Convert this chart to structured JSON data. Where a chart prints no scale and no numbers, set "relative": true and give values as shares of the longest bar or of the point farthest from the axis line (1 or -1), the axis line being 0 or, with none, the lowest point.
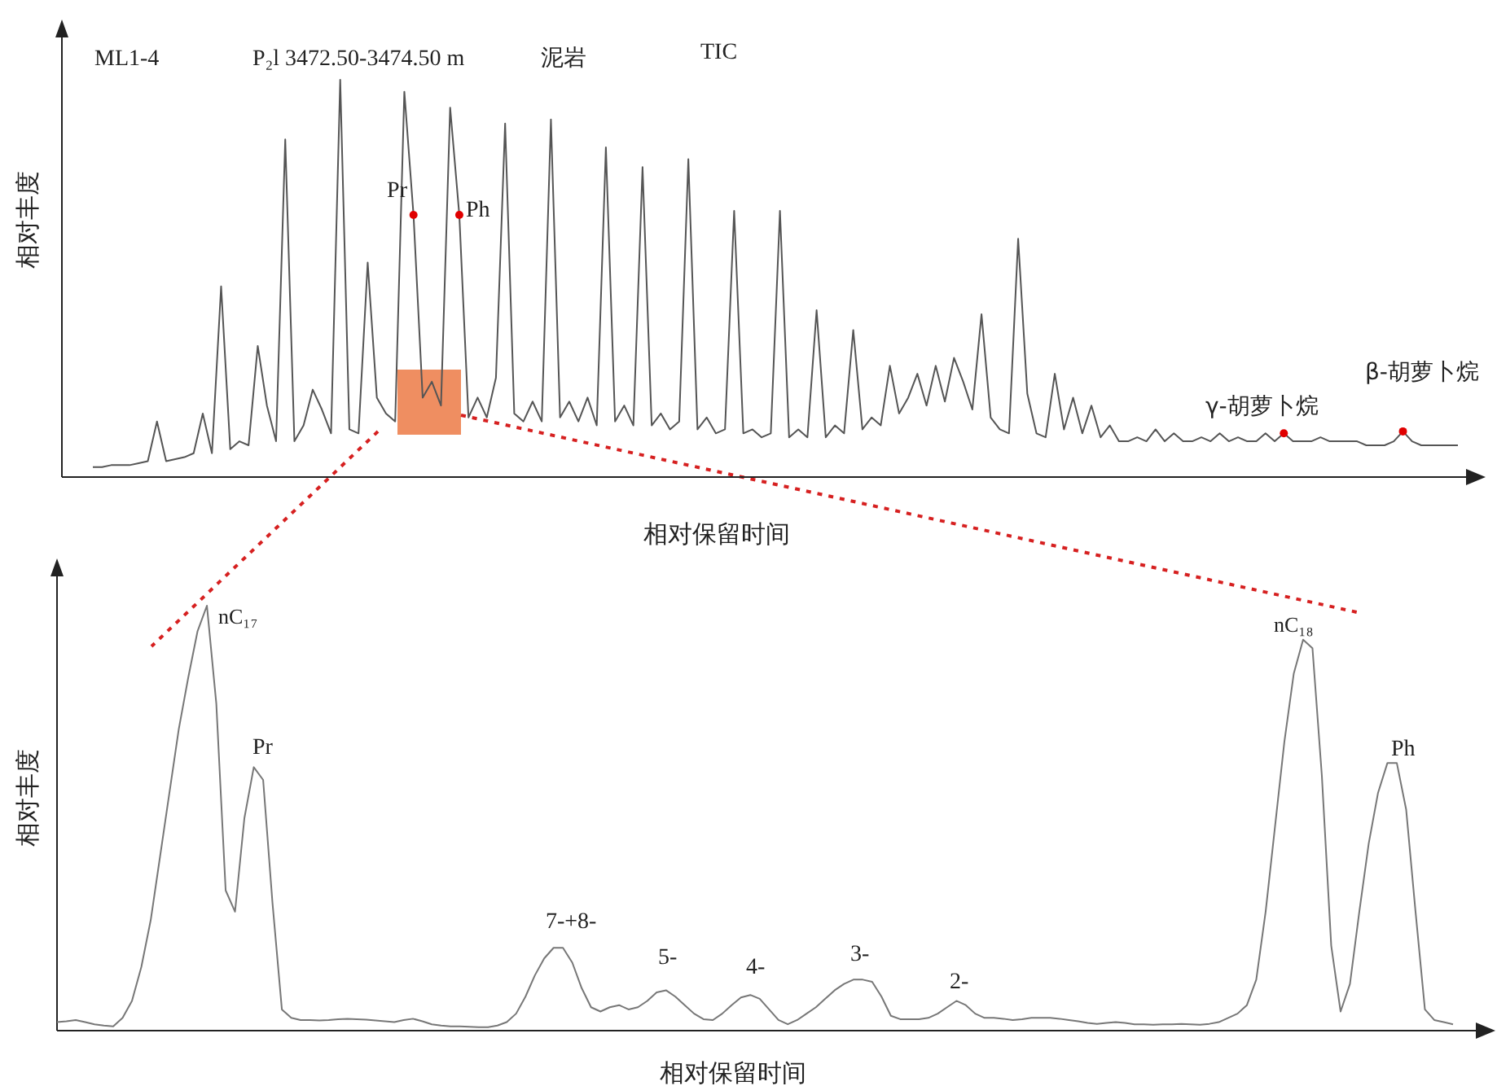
{
  "chart_data": [
    {
      "type": "line",
      "relative": true,
      "ylabel": "相对丰度",
      "xlabel": "相对保留时间",
      "annotations": [
        "ML1-4",
        "P₂l  3472.50-3474.50 m",
        "泥岩",
        "TIC",
        "Pr",
        "Ph",
        "γ-胡萝卜烷",
        "β-胡萝卜烷"
      ],
      "categories": [
        null,
        null,
        null,
        null,
        null,
        null,
        null,
        null,
        null,
        null,
        null,
        null,
        null,
        null,
        null,
        null,
        null,
        null,
        null,
        null,
        null,
        null,
        null,
        null,
        null,
        null,
        null,
        null,
        null,
        null,
        null,
        null,
        null,
        null,
        null,
        null,
        null,
        null,
        null,
        null,
        null,
        null,
        null,
        null,
        null,
        null,
        null,
        null,
        null,
        null,
        null,
        null,
        null,
        null,
        null,
        null,
        null,
        null,
        null,
        null,
        null,
        null,
        null,
        null,
        null,
        null,
        null,
        null,
        null,
        null,
        null,
        null,
        null,
        null,
        null,
        null,
        null,
        null,
        null,
        null,
        null,
        null,
        null,
        null,
        null,
        null,
        null,
        null,
        null,
        null,
        null,
        null,
        null,
        null,
        null,
        null,
        null,
        null,
        null,
        null,
        null,
        null,
        null,
        null,
        null,
        null,
        null,
        null,
        null,
        null,
        null,
        null,
        null,
        null,
        null,
        null,
        null,
        null,
        null,
        null,
        null,
        null,
        null,
        null,
        null,
        null,
        null,
        null,
        null,
        null,
        null,
        null,
        null,
        null,
        null,
        null,
        null,
        null,
        null,
        null,
        null,
        null,
        null,
        null,
        null,
        null,
        null,
        null,
        null,
        null
      ],
      "series": [
        {
          "color": "#555555",
          "values": [
            0.025,
            0.025,
            0.03,
            0.03,
            0.03,
            0.035,
            0.04,
            0.14,
            0.04,
            0.045,
            0.05,
            0.06,
            0.16,
            0.06,
            0.48,
            0.07,
            0.09,
            0.08,
            0.33,
            0.18,
            0.09,
            0.85,
            0.09,
            0.13,
            0.22,
            0.17,
            0.11,
            1.0,
            0.12,
            0.11,
            0.54,
            0.2,
            0.16,
            0.14,
            0.97,
            0.66,
            0.2,
            0.24,
            0.18,
            0.93,
            0.66,
            0.15,
            0.2,
            0.15,
            0.25,
            0.89,
            0.16,
            0.14,
            0.19,
            0.14,
            0.9,
            0.15,
            0.19,
            0.14,
            0.2,
            0.13,
            0.83,
            0.14,
            0.18,
            0.13,
            0.78,
            0.13,
            0.16,
            0.12,
            0.14,
            0.8,
            0.12,
            0.15,
            0.11,
            0.12,
            0.67,
            0.11,
            0.12,
            0.1,
            0.11,
            0.67,
            0.1,
            0.12,
            0.1,
            0.42,
            0.1,
            0.13,
            0.11,
            0.37,
            0.12,
            0.15,
            0.13,
            0.28,
            0.16,
            0.2,
            0.26,
            0.18,
            0.28,
            0.19,
            0.3,
            0.24,
            0.17,
            0.41,
            0.15,
            0.12,
            0.11,
            0.6,
            0.21,
            0.11,
            0.1,
            0.26,
            0.12,
            0.2,
            0.11,
            0.18,
            0.1,
            0.13,
            0.09,
            0.09,
            0.1,
            0.09,
            0.12,
            0.09,
            0.11,
            0.09,
            0.09,
            0.1,
            0.09,
            0.11,
            0.09,
            0.1,
            0.09,
            0.09,
            0.11,
            0.09,
            0.11,
            0.09,
            0.09,
            0.09,
            0.1,
            0.09,
            0.09,
            0.09,
            0.09,
            0.08,
            0.08,
            0.08,
            0.09,
            0.115,
            0.09,
            0.08,
            0.08,
            0.08,
            0.08,
            0.08
          ]
        }
      ]
    },
    {
      "type": "line",
      "relative": true,
      "ylabel": "相对丰度",
      "xlabel": "相对保留时间",
      "annotations": [
        "nC₁₇",
        "Pr",
        "7-+8-",
        "5-",
        "4-",
        "3-",
        "2-",
        "nC₁₈",
        "Ph"
      ],
      "categories": [
        null,
        null,
        null,
        null,
        null,
        null,
        null,
        null,
        null,
        null,
        null,
        null,
        null,
        null,
        null,
        null,
        null,
        null,
        null,
        null,
        null,
        null,
        null,
        null,
        null,
        null,
        null,
        null,
        null,
        null,
        null,
        null,
        null,
        null,
        null,
        null,
        null,
        null,
        null,
        null,
        null,
        null,
        null,
        null,
        null,
        null,
        null,
        null,
        null,
        null,
        null,
        null,
        null,
        null,
        null,
        null,
        null,
        null,
        null,
        null,
        null,
        null,
        null,
        null,
        null,
        null,
        null,
        null,
        null,
        null,
        null,
        null,
        null,
        null,
        null,
        null,
        null,
        null,
        null,
        null,
        null,
        null,
        null,
        null,
        null,
        null,
        null,
        null,
        null,
        null,
        null,
        null,
        null,
        null,
        null,
        null,
        null,
        null,
        null,
        null,
        null,
        null,
        null,
        null,
        null,
        null,
        null,
        null,
        null,
        null,
        null,
        null,
        null,
        null,
        null,
        null,
        null,
        null,
        null,
        null,
        null,
        null,
        null,
        null,
        null,
        null,
        null,
        null,
        null,
        null,
        null,
        null,
        null,
        null,
        null,
        null,
        null,
        null,
        null,
        null,
        null,
        null,
        null,
        null,
        null,
        null,
        null,
        null,
        null,
        null
      ],
      "series": [
        {
          "color": "#777777",
          "values": [
            0.02,
            0.022,
            0.025,
            0.02,
            0.015,
            0.012,
            0.01,
            0.03,
            0.07,
            0.15,
            0.26,
            0.41,
            0.56,
            0.71,
            0.83,
            0.94,
            1.0,
            0.77,
            0.33,
            0.28,
            0.5,
            0.62,
            0.59,
            0.3,
            0.05,
            0.03,
            0.025,
            0.025,
            0.024,
            0.025,
            0.027,
            0.028,
            0.027,
            0.026,
            0.024,
            0.022,
            0.02,
            0.025,
            0.028,
            0.022,
            0.015,
            0.012,
            0.01,
            0.01,
            0.009,
            0.008,
            0.008,
            0.012,
            0.02,
            0.04,
            0.08,
            0.13,
            0.17,
            0.195,
            0.195,
            0.16,
            0.1,
            0.055,
            0.045,
            0.055,
            0.06,
            0.05,
            0.055,
            0.07,
            0.09,
            0.095,
            0.08,
            0.06,
            0.04,
            0.027,
            0.025,
            0.04,
            0.06,
            0.078,
            0.084,
            0.075,
            0.05,
            0.025,
            0.015,
            0.025,
            0.04,
            0.055,
            0.075,
            0.095,
            0.11,
            0.12,
            0.12,
            0.115,
            0.08,
            0.035,
            0.027,
            0.027,
            0.027,
            0.03,
            0.04,
            0.055,
            0.07,
            0.06,
            0.04,
            0.03,
            0.03,
            0.028,
            0.025,
            0.027,
            0.03,
            0.03,
            0.03,
            0.028,
            0.025,
            0.022,
            0.018,
            0.016,
            0.018,
            0.02,
            0.018,
            0.015,
            0.015,
            0.014,
            0.015,
            0.015,
            0.016,
            0.015,
            0.014,
            0.016,
            0.02,
            0.03,
            0.04,
            0.06,
            0.12,
            0.28,
            0.48,
            0.68,
            0.84,
            0.92,
            0.9,
            0.6,
            0.2,
            0.045,
            0.11,
            0.28,
            0.44,
            0.56,
            0.63,
            0.63,
            0.52,
            0.28,
            0.05,
            0.025,
            0.02,
            0.015
          ]
        }
      ]
    }
  ]
}
